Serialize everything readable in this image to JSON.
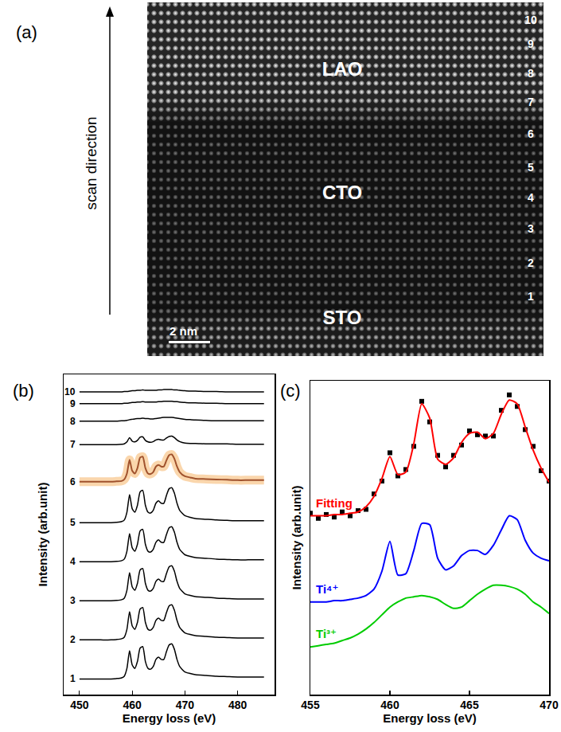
{
  "image": {
    "label": "(a)",
    "arrow_label": "scan direction",
    "regions": [
      "LAO",
      "CTO",
      "STO"
    ],
    "layer_labels": [
      "1",
      "2",
      "3",
      "4",
      "5",
      "6",
      "7",
      "8",
      "9",
      "10"
    ],
    "scale_bar": "2 nm"
  },
  "chart_data": [
    {
      "type": "line",
      "title": "(b)",
      "x_label": "Energy loss (eV)",
      "y_label": "Intensity (arb.unit)",
      "x": [
        450,
        452,
        454,
        456,
        457,
        458,
        458.5,
        459,
        459.5,
        460,
        460.5,
        461,
        461.5,
        462,
        462.5,
        463,
        463.5,
        464,
        464.5,
        465,
        465.5,
        466,
        466.5,
        467,
        467.5,
        468,
        468.5,
        469,
        470,
        471,
        472,
        474,
        476,
        478,
        480,
        482,
        485
      ],
      "xlim": [
        447,
        487
      ],
      "xticks": [
        450,
        460,
        470,
        480
      ],
      "ylim": [
        -0.4,
        7.8
      ],
      "tick_labels": "x",
      "series": [
        {
          "name": "1",
          "color": "#000000",
          "values": [
            0,
            0,
            0,
            0,
            0.01,
            0.03,
            0.07,
            0.27,
            0.72,
            0.36,
            0.27,
            0.45,
            0.79,
            0.83,
            0.45,
            0.27,
            0.25,
            0.32,
            0.5,
            0.56,
            0.5,
            0.5,
            0.7,
            0.87,
            0.9,
            0.76,
            0.5,
            0.32,
            0.18,
            0.14,
            0.11,
            0.09,
            0.07,
            0.06,
            0.05,
            0.05,
            0.05
          ]
        },
        {
          "name": "2",
          "color": "#000000",
          "values": [
            1,
            1,
            1,
            1,
            1.01,
            1.03,
            1.07,
            1.27,
            1.72,
            1.36,
            1.27,
            1.45,
            1.79,
            1.83,
            1.45,
            1.27,
            1.25,
            1.32,
            1.5,
            1.56,
            1.5,
            1.5,
            1.7,
            1.87,
            1.9,
            1.76,
            1.5,
            1.32,
            1.18,
            1.14,
            1.11,
            1.09,
            1.07,
            1.06,
            1.05,
            1.05,
            1.05
          ]
        },
        {
          "name": "3",
          "color": "#000000",
          "values": [
            2,
            2,
            2,
            2,
            2.01,
            2.03,
            2.07,
            2.27,
            2.72,
            2.36,
            2.27,
            2.45,
            2.79,
            2.83,
            2.45,
            2.27,
            2.25,
            2.32,
            2.5,
            2.56,
            2.5,
            2.5,
            2.7,
            2.87,
            2.9,
            2.76,
            2.5,
            2.32,
            2.18,
            2.14,
            2.11,
            2.09,
            2.07,
            2.06,
            2.05,
            2.05,
            2.05
          ]
        },
        {
          "name": "4",
          "color": "#000000",
          "values": [
            3,
            3,
            3,
            3,
            3.01,
            3.03,
            3.07,
            3.27,
            3.72,
            3.36,
            3.27,
            3.45,
            3.79,
            3.83,
            3.45,
            3.27,
            3.25,
            3.32,
            3.5,
            3.56,
            3.5,
            3.5,
            3.7,
            3.87,
            3.9,
            3.76,
            3.5,
            3.32,
            3.18,
            3.14,
            3.11,
            3.09,
            3.07,
            3.06,
            3.05,
            3.05,
            3.05
          ]
        },
        {
          "name": "5",
          "color": "#000000",
          "values": [
            4,
            4,
            4,
            4,
            4.01,
            4.03,
            4.07,
            4.27,
            4.72,
            4.36,
            4.27,
            4.45,
            4.79,
            4.83,
            4.45,
            4.27,
            4.25,
            4.32,
            4.5,
            4.56,
            4.5,
            4.5,
            4.7,
            4.87,
            4.9,
            4.76,
            4.5,
            4.32,
            4.18,
            4.14,
            4.11,
            4.09,
            4.07,
            4.06,
            4.05,
            4.05,
            4.05
          ]
        },
        {
          "name": "6",
          "color": "#a0522d",
          "line_style": "glow",
          "values": [
            5.05,
            5.05,
            5.05,
            5.05,
            5.06,
            5.07,
            5.11,
            5.26,
            5.61,
            5.33,
            5.26,
            5.4,
            5.67,
            5.69,
            5.4,
            5.26,
            5.25,
            5.3,
            5.44,
            5.48,
            5.44,
            5.44,
            5.6,
            5.73,
            5.75,
            5.64,
            5.44,
            5.3,
            5.19,
            5.16,
            5.13,
            5.12,
            5.11,
            5.1,
            5.09,
            5.09,
            5.09
          ]
        },
        {
          "name": "7",
          "color": "#000000",
          "values": [
            6,
            6,
            6,
            6,
            6,
            6.01,
            6.02,
            6.07,
            6.18,
            6.09,
            6.07,
            6.11,
            6.19,
            6.2,
            6.11,
            6.07,
            6.06,
            6.08,
            6.12,
            6.14,
            6.12,
            6.12,
            6.17,
            6.21,
            6.22,
            6.18,
            6.12,
            6.08,
            6.04,
            6.03,
            6.03,
            6.02,
            6.02,
            6.02,
            6.01,
            6.01,
            6.01
          ]
        },
        {
          "name": "8",
          "color": "#000000",
          "values": [
            6.6,
            6.6,
            6.6,
            6.6,
            6.6,
            6.61,
            6.61,
            6.62,
            6.64,
            6.65,
            6.66,
            6.67,
            6.67,
            6.68,
            6.67,
            6.67,
            6.66,
            6.66,
            6.67,
            6.68,
            6.69,
            6.7,
            6.7,
            6.7,
            6.7,
            6.69,
            6.68,
            6.67,
            6.65,
            6.64,
            6.63,
            6.62,
            6.61,
            6.61,
            6.61,
            6.61,
            6.61
          ]
        },
        {
          "name": "9",
          "color": "#000000",
          "values": [
            7.05,
            7.05,
            7.05,
            7.05,
            7.05,
            7.05,
            7.06,
            7.06,
            7.07,
            7.08,
            7.08,
            7.09,
            7.09,
            7.1,
            7.09,
            7.09,
            7.09,
            7.09,
            7.09,
            7.1,
            7.1,
            7.11,
            7.11,
            7.11,
            7.11,
            7.1,
            7.1,
            7.09,
            7.08,
            7.07,
            7.07,
            7.06,
            7.06,
            7.05,
            7.05,
            7.05,
            7.05
          ]
        },
        {
          "name": "10",
          "color": "#000000",
          "values": [
            7.35,
            7.35,
            7.35,
            7.35,
            7.35,
            7.35,
            7.36,
            7.36,
            7.37,
            7.38,
            7.38,
            7.39,
            7.39,
            7.4,
            7.39,
            7.39,
            7.39,
            7.39,
            7.39,
            7.4,
            7.4,
            7.41,
            7.41,
            7.41,
            7.41,
            7.4,
            7.4,
            7.39,
            7.38,
            7.37,
            7.37,
            7.36,
            7.36,
            7.35,
            7.35,
            7.35,
            7.35
          ]
        }
      ]
    },
    {
      "type": "line",
      "title": "(c)",
      "x_label": "Energy loss (eV)",
      "y_label": "Intensity (arb.unit)",
      "x": [
        455,
        455.5,
        456,
        456.5,
        457,
        457.5,
        458,
        458.5,
        459,
        459.5,
        460,
        460.5,
        461,
        461.5,
        462,
        462.5,
        463,
        463.5,
        464,
        464.5,
        465,
        465.5,
        466,
        466.5,
        467,
        467.5,
        468,
        468.5,
        469,
        469.5,
        470
      ],
      "xlim": [
        455,
        470
      ],
      "xticks": [
        455,
        460,
        465,
        470
      ],
      "ylim": [
        0,
        24.4
      ],
      "tick_labels": "x",
      "series": [
        {
          "color": "#000000",
          "marker": "square",
          "line_style": "none",
          "values": [
            14.1,
            13.7,
            14.0,
            13.8,
            14.2,
            13.9,
            14.3,
            14.4,
            15.6,
            16.6,
            18.8,
            17.0,
            17.5,
            19.3,
            22.8,
            21.2,
            18.6,
            17.7,
            18.6,
            19.4,
            20.5,
            20.2,
            20.1,
            20.1,
            22.1,
            23.3,
            22.4,
            20.6,
            19.3,
            17.4,
            16.6
          ]
        },
        {
          "name": "Fitting",
          "color": "#ff0000",
          "values": [
            13.9,
            13.9,
            13.9,
            14.0,
            14.0,
            14.1,
            14.2,
            14.6,
            15.4,
            16.8,
            18.5,
            17.1,
            17.3,
            19.5,
            22.6,
            21.5,
            18.3,
            17.9,
            18.4,
            19.6,
            20.3,
            20.4,
            19.9,
            20.3,
            21.8,
            22.9,
            22.6,
            20.8,
            19.0,
            17.6,
            16.5
          ]
        },
        {
          "name": "Ti⁴⁺",
          "color": "#0000ff",
          "values": [
            7.2,
            7.2,
            7.2,
            7.3,
            7.3,
            7.4,
            7.5,
            7.7,
            8.2,
            9.6,
            11.9,
            9.3,
            9.4,
            11.2,
            13.3,
            13.2,
            10.6,
            9.7,
            10.0,
            10.8,
            11.2,
            11.2,
            10.9,
            11.6,
            12.8,
            13.9,
            13.6,
            12.0,
            11.0,
            10.6,
            10.4
          ]
        },
        {
          "name": "Ti³⁺",
          "color": "#00cc00",
          "values": [
            3.7,
            3.8,
            3.9,
            4.0,
            4.2,
            4.4,
            4.7,
            5.1,
            5.6,
            6.2,
            6.8,
            7.2,
            7.5,
            7.6,
            7.7,
            7.6,
            7.4,
            7.0,
            6.7,
            6.8,
            7.3,
            7.8,
            8.2,
            8.5,
            8.5,
            8.4,
            8.2,
            7.8,
            7.2,
            6.8,
            6.3
          ]
        }
      ]
    }
  ]
}
